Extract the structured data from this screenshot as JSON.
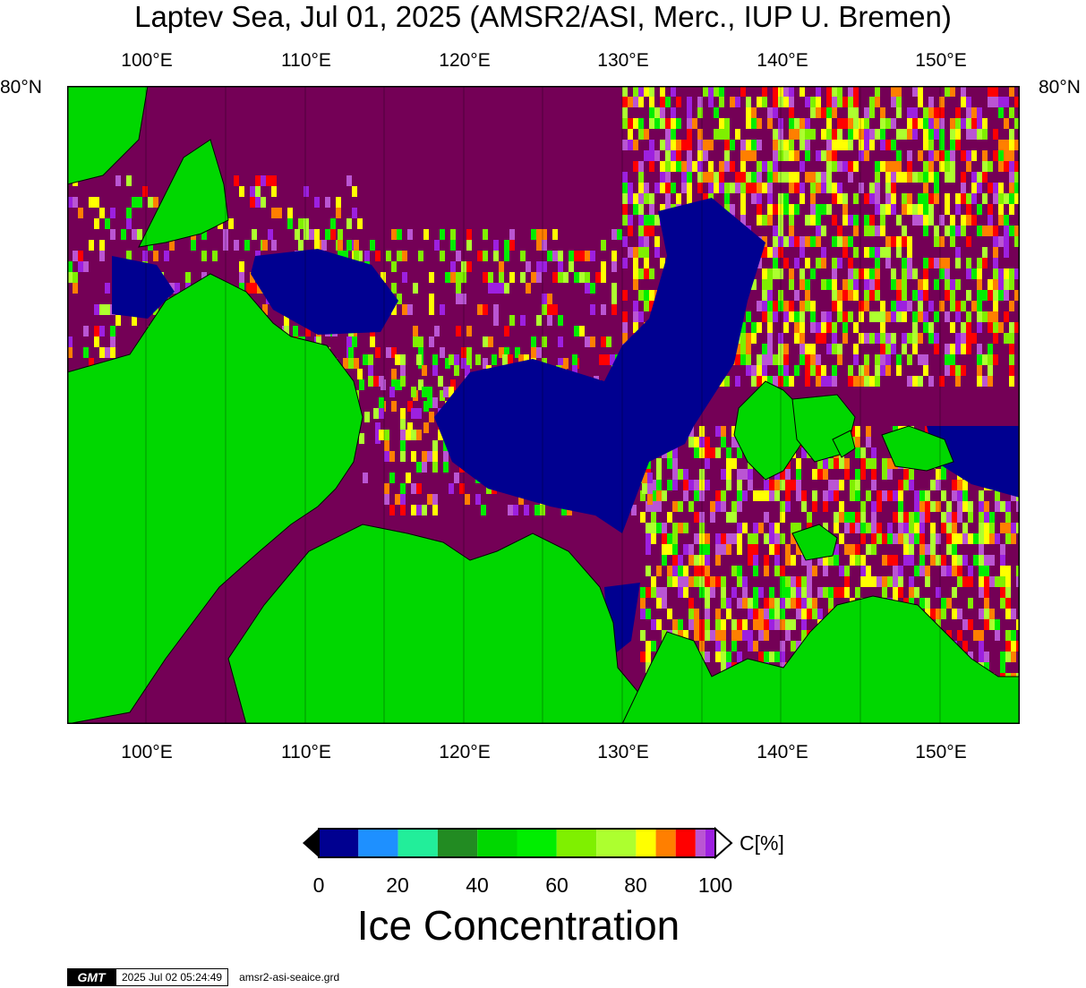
{
  "title": "Laptev Sea, Jul 01, 2025 (AMSR2/ASI, Merc., IUP U. Bremen)",
  "map": {
    "lon_labels": [
      "100°E",
      "110°E",
      "120°E",
      "130°E",
      "140°E",
      "150°E"
    ],
    "lat_labels": {
      "left": "80°N",
      "right": "80°N"
    },
    "colors": {
      "water": "#740056",
      "land": "#00d700",
      "open": "#000090",
      "frame": "#000000"
    }
  },
  "colorbar": {
    "ticks": [
      "0",
      "20",
      "40",
      "60",
      "80",
      "100"
    ],
    "unit": "C[%]",
    "colors": [
      "#000090",
      "#1e90ff",
      "#22ee9a",
      "#228b22",
      "#00d700",
      "#00ee00",
      "#7ff000",
      "#adff2f",
      "#ffff00",
      "#ff7f00",
      "#ff0000",
      "#ba55d3",
      "#9d20e0"
    ],
    "under_color": "#000000",
    "over_color": "#ffffff",
    "title": "Ice Concentration"
  },
  "footer": {
    "logo": "GMT",
    "timestamp": "2025 Jul 02 05:24:49",
    "file": "amsr2-asi-seaice.grd"
  }
}
